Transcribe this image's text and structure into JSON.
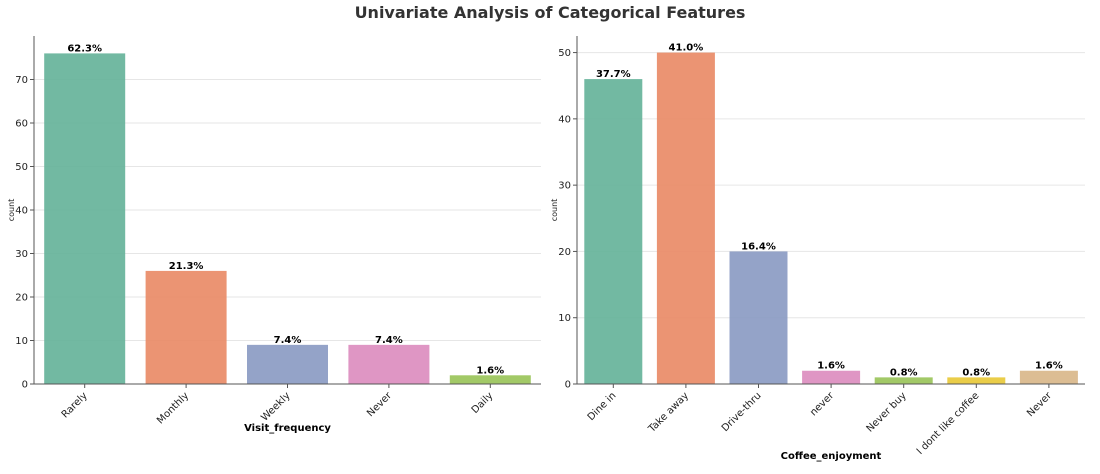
{
  "figure": {
    "title": "Univariate Analysis of Categorical Features"
  },
  "colors": [
    "#66b39a",
    "#e98b67",
    "#8b9bc3",
    "#dc8dbf",
    "#9ac45a",
    "#e8c93a",
    "#d9b78a"
  ],
  "chart_data": [
    {
      "type": "bar",
      "xlabel": "Visit_frequency",
      "ylabel": "count",
      "categories": [
        "Rarely",
        "Monthly",
        "Weekly",
        "Never",
        "Daily"
      ],
      "values": [
        76,
        26,
        9,
        9,
        2
      ],
      "data_labels": [
        "62.3%",
        "21.3%",
        "7.4%",
        "7.4%",
        "1.6%"
      ],
      "ylim": [
        0,
        80
      ],
      "yticks": [
        0,
        10,
        20,
        30,
        40,
        50,
        60,
        70
      ],
      "grid": "horizontal"
    },
    {
      "type": "bar",
      "xlabel": "Coffee_enjoyment",
      "ylabel": "count",
      "categories": [
        "Dine in",
        "Take away",
        "Drive-thru",
        "never",
        "Never buy",
        "I dont like coffee",
        "Never"
      ],
      "values": [
        46,
        50,
        20,
        2,
        1,
        1,
        2
      ],
      "data_labels": [
        "37.7%",
        "41.0%",
        "16.4%",
        "1.6%",
        "0.8%",
        "0.8%",
        "1.6%"
      ],
      "ylim": [
        0,
        52.5
      ],
      "yticks": [
        0,
        10,
        20,
        30,
        40,
        50
      ],
      "grid": "horizontal"
    }
  ]
}
